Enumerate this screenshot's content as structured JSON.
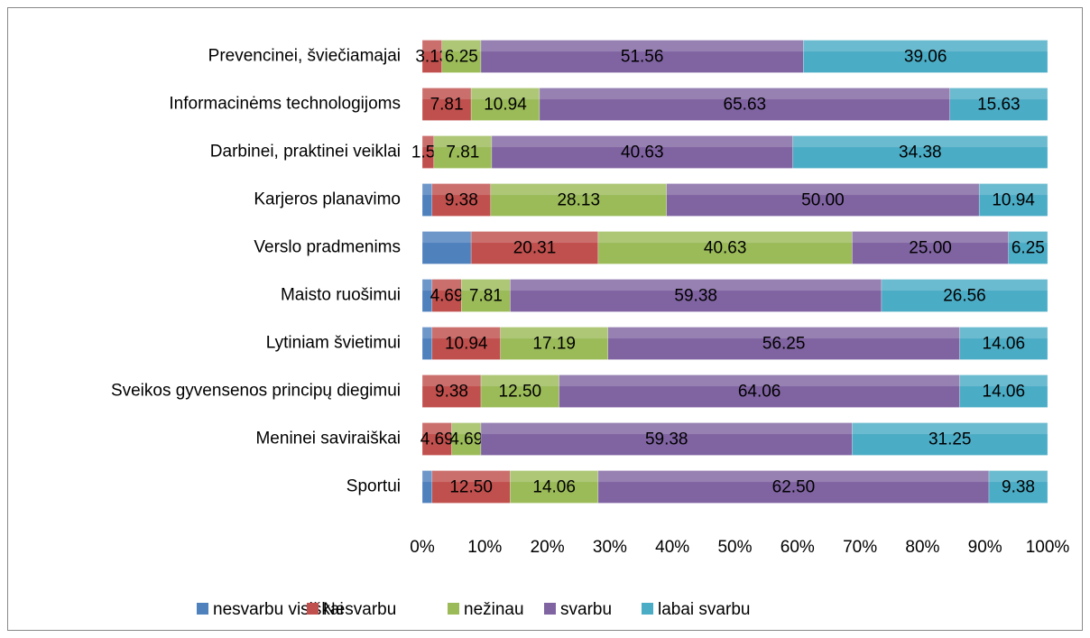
{
  "chart_data": {
    "type": "stacked_bar_100",
    "orientation": "horizontal",
    "categories": [
      "Prevencinei, šviečiamajai",
      "Informacinėms technologijoms",
      "Darbinei, praktinei veiklai",
      "Karjeros planavimo",
      "Verslo pradmenims",
      "Maisto ruošimui",
      "Lytiniam švietimui",
      "Sveikos gyvensenos principų diegimui",
      "Meninei saviraiškai",
      "Sportui"
    ],
    "series": [
      {
        "name": "nesvarbu visiškai",
        "color": "#4f81bd",
        "values": [
          0,
          0,
          0,
          1.56,
          7.81,
          1.56,
          1.56,
          0,
          0,
          1.56
        ]
      },
      {
        "name": "Nesvarbu",
        "color": "#c0504d",
        "values": [
          3.13,
          7.81,
          1.56,
          9.38,
          20.31,
          4.69,
          10.94,
          9.38,
          4.69,
          12.5
        ],
        "value_labels": [
          "3.13",
          "7.81",
          "1.56",
          "9.38",
          "20.31",
          "4.69",
          "10.94",
          "9.38",
          "4.69",
          "12.50"
        ]
      },
      {
        "name": "nežinau",
        "color": "#9bbb59",
        "values": [
          6.25,
          10.94,
          7.81,
          28.13,
          40.63,
          7.81,
          17.19,
          12.5,
          4.69,
          14.06
        ],
        "value_labels": [
          "6.25",
          "10.94",
          "7.81",
          "28.13",
          "40.63",
          "7.81",
          "17.19",
          "12.50",
          "4.69",
          "14.06"
        ]
      },
      {
        "name": "svarbu",
        "color": "#8064a2",
        "values": [
          51.56,
          65.63,
          40.63,
          50,
          25,
          59.38,
          56.25,
          64.06,
          59.38,
          62.5
        ],
        "value_labels": [
          "51.56",
          "65.63",
          "40.63",
          "50.00",
          "25.00",
          "59.38",
          "56.25",
          "64.06",
          "59.38",
          "62.50"
        ]
      },
      {
        "name": "labai svarbu",
        "color": "#4bacc6",
        "values": [
          39.06,
          15.63,
          34.38,
          10.94,
          6.25,
          26.56,
          14.06,
          14.06,
          31.25,
          9.38
        ],
        "value_labels": [
          "39.06",
          "15.63",
          "34.38",
          "10.94",
          "6.25",
          "26.56",
          "14.06",
          "14.06",
          "31.25",
          "9.38"
        ]
      }
    ],
    "xlim": [
      0,
      100
    ],
    "xticks": [
      {
        "value": 0,
        "label": "0%"
      },
      {
        "value": 10,
        "label": "10%"
      },
      {
        "value": 20,
        "label": "20%"
      },
      {
        "value": 30,
        "label": "30%"
      },
      {
        "value": 40,
        "label": "40%"
      },
      {
        "value": 50,
        "label": "50%"
      },
      {
        "value": 60,
        "label": "60%"
      },
      {
        "value": 70,
        "label": "70%"
      },
      {
        "value": 80,
        "label": "80%"
      },
      {
        "value": 90,
        "label": "90%"
      },
      {
        "value": 100,
        "label": "100%"
      }
    ],
    "legend": "bottom"
  }
}
